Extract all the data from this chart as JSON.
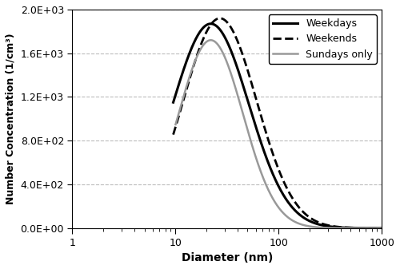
{
  "title": "",
  "xlabel": "Diameter (nm)",
  "ylabel": "Number Concentration (1/cm³)",
  "xlim": [
    1,
    1000
  ],
  "ylim": [
    0,
    2000
  ],
  "yticks": [
    0,
    400,
    800,
    1200,
    1600,
    2000
  ],
  "ytick_labels": [
    "0.0E+00",
    "4.0E+02",
    "8.0E+02",
    "1.2E+03",
    "1.6E+03",
    "2.0E+03"
  ],
  "xtick_labels": [
    "1",
    "10",
    "100",
    "1000"
  ],
  "xtick_values": [
    1,
    10,
    100,
    1000
  ],
  "series": [
    {
      "label": "Weekdays",
      "color": "#000000",
      "linestyle": "solid",
      "linewidth": 2.2,
      "peak_x": 22,
      "peak_y": 1870,
      "sigma": 0.85,
      "x_start": 9.5
    },
    {
      "label": "Weekends",
      "color": "#000000",
      "linestyle": "dashed",
      "linewidth": 2.0,
      "peak_x": 27,
      "peak_y": 1920,
      "sigma": 0.82,
      "x_start": 9.5
    },
    {
      "label": "Sundays only",
      "color": "#999999",
      "linestyle": "solid",
      "linewidth": 1.8,
      "peak_x": 22,
      "peak_y": 1720,
      "sigma": 0.72,
      "x_start": 10.0
    }
  ],
  "legend_loc": "upper right",
  "grid_linestyle": "--",
  "grid_color": "#bbbbbb",
  "background_color": "#ffffff",
  "xlabel_fontsize": 10,
  "ylabel_fontsize": 9,
  "tick_fontsize": 9,
  "legend_fontsize": 9
}
